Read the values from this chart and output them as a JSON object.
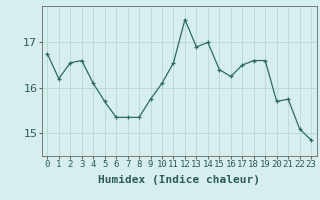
{
  "x": [
    0,
    1,
    2,
    3,
    4,
    5,
    6,
    7,
    8,
    9,
    10,
    11,
    12,
    13,
    14,
    15,
    16,
    17,
    18,
    19,
    20,
    21,
    22,
    23
  ],
  "y": [
    16.75,
    16.2,
    16.55,
    16.6,
    16.1,
    15.7,
    15.35,
    15.35,
    15.35,
    15.75,
    16.1,
    16.55,
    17.5,
    16.9,
    17.0,
    16.4,
    16.25,
    16.5,
    16.6,
    16.6,
    15.7,
    15.75,
    15.1,
    14.85
  ],
  "line_color": "#2e6b5e",
  "bg_color": "#d6eeee",
  "grid_color": "#b8d8d4",
  "xlabel": "Humidex (Indice chaleur)",
  "ylim": [
    14.5,
    17.8
  ],
  "yticks": [
    15,
    16,
    17
  ],
  "xlim": [
    -0.5,
    23.5
  ],
  "xlabel_fontsize": 8,
  "ytick_fontsize": 8,
  "xtick_fontsize": 6.5
}
